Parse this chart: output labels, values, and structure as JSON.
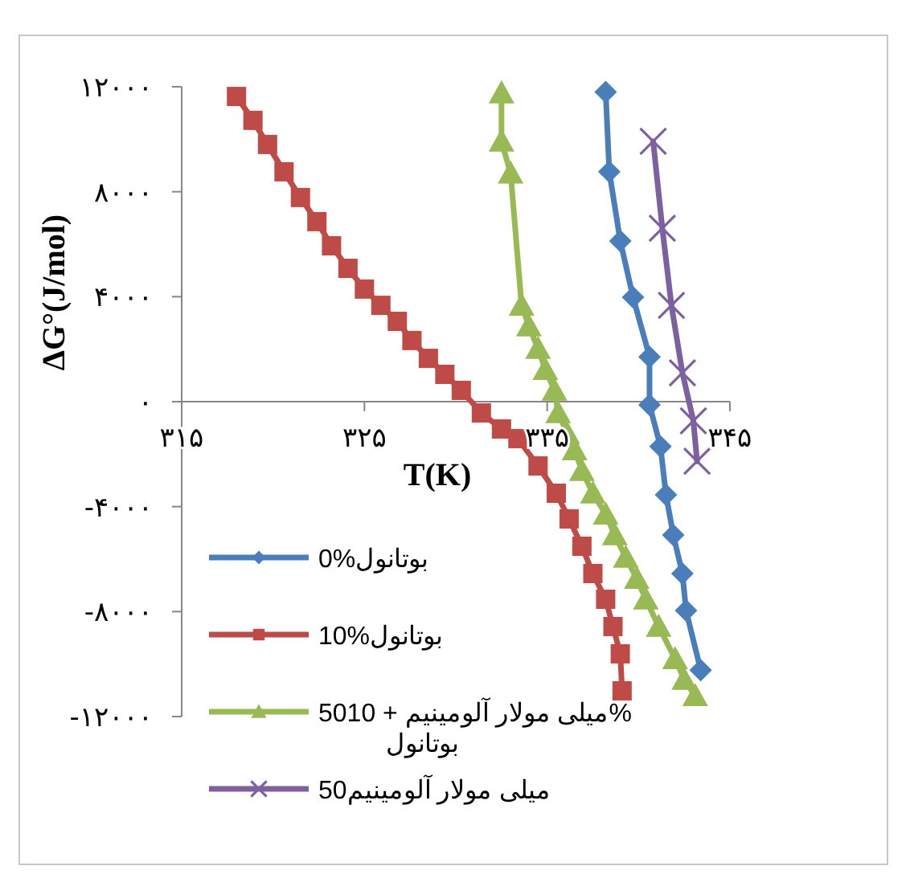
{
  "chart_data": {
    "type": "line",
    "xlabel": "T(K)",
    "ylabel": "ΔG°(J/mol)",
    "xlim": [
      315,
      345
    ],
    "xticks": [
      {
        "value": 315,
        "label": "۳۱۵"
      },
      {
        "value": 325,
        "label": "۳۲۵"
      },
      {
        "value": 335,
        "label": "۳۳۵"
      },
      {
        "value": 345,
        "label": "۳۴۵"
      }
    ],
    "ylim": [
      -12000,
      12000
    ],
    "yticks": [
      {
        "value": -12000,
        "label": "-۱۲۰۰۰"
      },
      {
        "value": -8000,
        "label": "-۸۰۰۰"
      },
      {
        "value": -4000,
        "label": "-۴۰۰۰"
      },
      {
        "value": 0,
        "label": "۰"
      },
      {
        "value": 4000,
        "label": "۴۰۰۰"
      },
      {
        "value": 8000,
        "label": "۸۰۰۰"
      },
      {
        "value": 12000,
        "label": "۱۲۰۰۰"
      }
    ],
    "grid": false,
    "legend": "bottom left",
    "line_style": "solid",
    "series": [
      {
        "name": "0%بوتانول",
        "color": "#4a7ebb",
        "marker": "diamond",
        "x": [
          338.2,
          338.4,
          339.0,
          339.7,
          340.6,
          340.6,
          341.2,
          341.5,
          341.9,
          342.4,
          342.6,
          343.4
        ],
        "values": [
          11800,
          8760,
          6120,
          3980,
          1710,
          -120,
          -1710,
          -3550,
          -5080,
          -6550,
          -7960,
          -10230
        ]
      },
      {
        "name": "10%بوتانول",
        "color": "#be4b48",
        "marker": "square",
        "x": [
          318.0,
          318.9,
          319.7,
          320.6,
          321.5,
          322.4,
          323.2,
          324.1,
          325.0,
          325.9,
          326.8,
          327.6,
          328.5,
          329.4,
          330.3,
          331.4,
          332.5,
          333.4,
          334.5,
          335.5,
          336.2,
          336.9,
          337.5,
          338.2,
          338.6,
          339.0,
          339.1
        ],
        "values": [
          11630,
          10720,
          9800,
          8760,
          7780,
          6860,
          5940,
          5080,
          4290,
          3670,
          3060,
          2330,
          1650,
          1040,
          430,
          -430,
          -1040,
          -1410,
          -2450,
          -3490,
          -4470,
          -5510,
          -6550,
          -7530,
          -8570,
          -9610,
          -11020
        ]
      },
      {
        "name": "50میلی مولار آلومینیم + 10% بوتانول",
        "color": "#98b954",
        "marker": "triangle",
        "x": [
          332.5,
          332.5,
          333.0,
          333.6,
          334.0,
          334.5,
          334.9,
          335.4,
          335.6,
          336.1,
          336.5,
          336.9,
          337.5,
          338.2,
          338.7,
          339.3,
          339.9,
          340.4,
          341.1,
          342.0,
          342.5,
          343.1
        ],
        "values": [
          11760,
          9920,
          8700,
          3670,
          2880,
          2020,
          1220,
          430,
          -430,
          -1220,
          -1840,
          -2630,
          -3490,
          -4290,
          -5080,
          -5940,
          -6740,
          -7530,
          -8570,
          -9800,
          -10590,
          -11210
        ]
      },
      {
        "name": "50میلی مولار آلومینیم",
        "color": "#7d60a0",
        "marker": "cross",
        "x": [
          340.8,
          341.3,
          341.8,
          342.4,
          343.0,
          343.2
        ],
        "values": [
          9920,
          6610,
          3670,
          1100,
          -730,
          -2270
        ]
      }
    ]
  }
}
